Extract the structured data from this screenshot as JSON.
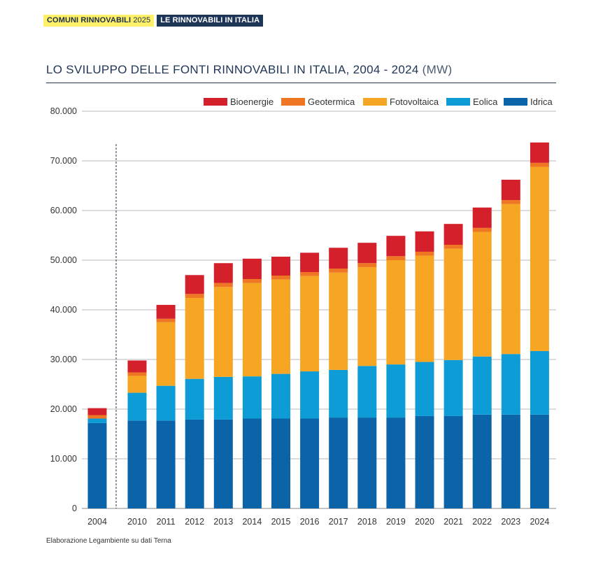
{
  "header": {
    "tag1_a": "COMUNI RINNOVABILI",
    "tag1_b": "2025",
    "tag2": "LE RINNOVABILI IN ITALIA"
  },
  "title": {
    "main": "LO SVILUPPO DELLE FONTI RINNOVABILI IN ITALIA, 2004 - 2024",
    "unit": "(MW)"
  },
  "footnote": "Elaborazione Legambiente su dati Terna",
  "chart_data": {
    "type": "bar",
    "stacked": true,
    "title": "LO SVILUPPO DELLE FONTI RINNOVABILI IN ITALIA, 2004 - 2024 (MW)",
    "xlabel": "",
    "ylabel": "MW",
    "ylim": [
      0,
      80000
    ],
    "yticks": [
      0,
      10000,
      20000,
      30000,
      40000,
      50000,
      60000,
      70000,
      80000
    ],
    "ytick_labels": [
      "0",
      "10.000",
      "20.000",
      "30.000",
      "40.000",
      "50.000",
      "60.000",
      "70.000",
      "80.000"
    ],
    "grid": true,
    "legend_position": "top-right",
    "categories": [
      "2004",
      "2010",
      "2011",
      "2012",
      "2013",
      "2014",
      "2015",
      "2016",
      "2017",
      "2018",
      "2019",
      "2020",
      "2021",
      "2022",
      "2023",
      "2024"
    ],
    "series": [
      {
        "name": "Idrica",
        "color": "#0b64a8",
        "values": [
          17200,
          17700,
          17700,
          17900,
          17900,
          18100,
          18100,
          18100,
          18300,
          18300,
          18300,
          18600,
          18600,
          18900,
          18900,
          18900
        ]
      },
      {
        "name": "Eolica",
        "color": "#0d9cd6",
        "values": [
          900,
          5600,
          7000,
          8200,
          8600,
          8500,
          9000,
          9500,
          9600,
          10400,
          10700,
          10900,
          11300,
          11700,
          12200,
          12800
        ]
      },
      {
        "name": "Fotovoltaica",
        "color": "#f6a623",
        "values": [
          0,
          3400,
          12800,
          16300,
          18100,
          18800,
          19000,
          19200,
          19600,
          19900,
          21000,
          21400,
          22400,
          25100,
          30200,
          37100
        ]
      },
      {
        "name": "Geotermica",
        "color": "#ef7622",
        "values": [
          700,
          700,
          700,
          800,
          800,
          800,
          800,
          800,
          800,
          800,
          800,
          800,
          800,
          800,
          800,
          800
        ]
      },
      {
        "name": "Bioenergie",
        "color": "#d3202a",
        "values": [
          1400,
          2400,
          2800,
          3800,
          4000,
          4100,
          3800,
          3900,
          4200,
          4100,
          4100,
          4100,
          4200,
          4100,
          4100,
          4100
        ]
      }
    ],
    "legend_order": [
      "Bioenergie",
      "Geotermica",
      "Fotovoltaica",
      "Eolica",
      "Idrica"
    ]
  }
}
